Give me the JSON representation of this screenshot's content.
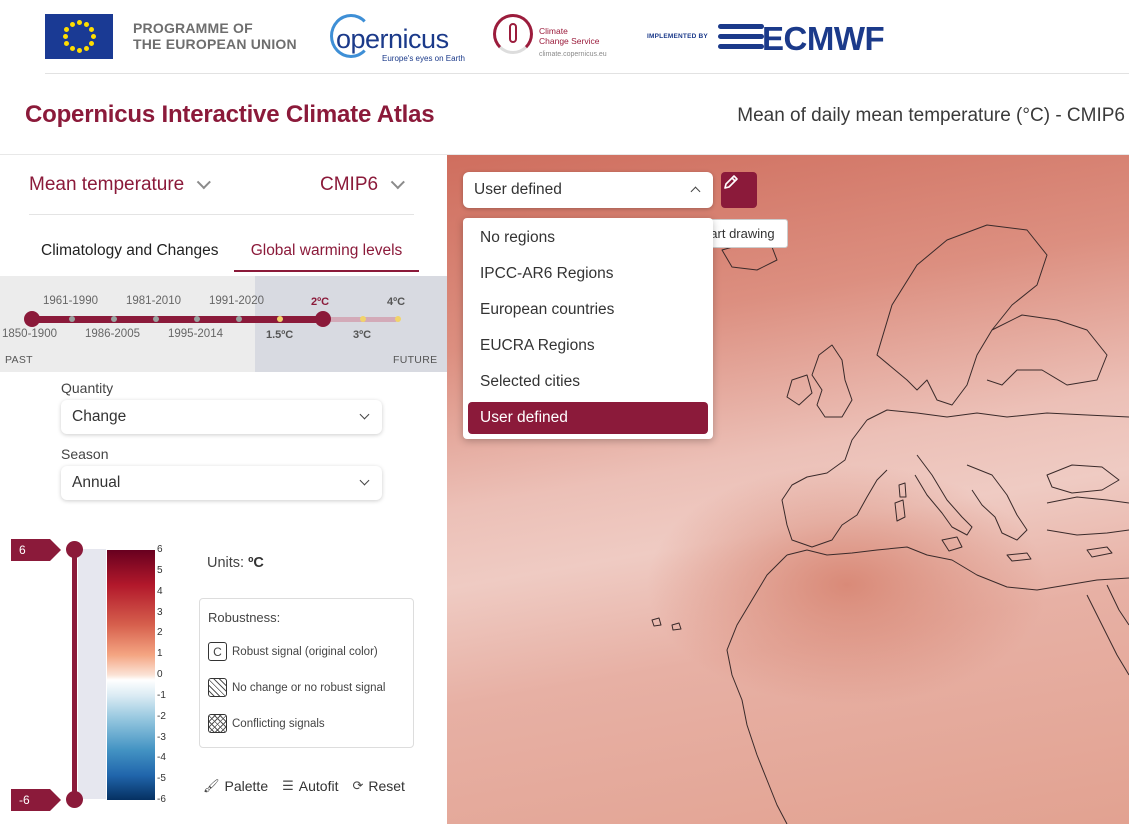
{
  "header": {
    "eu_text_line1": "PROGRAMME OF",
    "eu_text_line2": "THE EUROPEAN UNION",
    "copernicus_word": "opernicus",
    "copernicus_tagline": "Europe's eyes on Earth",
    "c3s_line1": "Climate",
    "c3s_line2": "Change Service",
    "c3s_url": "climate.copernicus.eu",
    "implemented_by": "IMPLEMENTED BY",
    "ecmwf_word": "ECMWF"
  },
  "title": {
    "app": "Copernicus Interactive Climate Atlas",
    "map": "Mean of daily mean temperature (°C) - CMIP6"
  },
  "panel": {
    "variable": "Mean temperature",
    "dataset": "CMIP6",
    "tabs": [
      "Climatology and Changes",
      "Global warming levels"
    ],
    "active_tab": 1,
    "timeline": {
      "periods_top": [
        "1961-1990",
        "1981-2010",
        "1991-2020"
      ],
      "periods_bottom": [
        "1850-1900",
        "1986-2005",
        "1995-2014"
      ],
      "gwl_top": [
        "2ºC",
        "4ºC"
      ],
      "gwl_bottom": [
        "1.5ºC",
        "3ºC"
      ],
      "selected": "2ºC",
      "past_label": "PAST",
      "future_label": "FUTURE"
    },
    "quantity_label": "Quantity",
    "quantity_value": "Change",
    "season_label": "Season",
    "season_value": "Annual"
  },
  "legend": {
    "max_flag": "6",
    "min_flag": "-6",
    "ticks": [
      "6",
      "5",
      "4",
      "3",
      "2",
      "1",
      "0",
      "-1",
      "-2",
      "-3",
      "-4",
      "-5",
      "-6"
    ],
    "units_label": "Units:",
    "units_value": "ºC",
    "robustness_title": "Robustness:",
    "robust_icon_letter": "C",
    "robust_items": [
      "Robust signal (original color)",
      "No change or no robust signal",
      "Conflicting signals"
    ],
    "actions": [
      "Palette",
      "Autofit",
      "Reset"
    ]
  },
  "map": {
    "region_select_value": "User defined",
    "draw_tooltip": "Start drawing",
    "region_options": [
      "No regions",
      "IPCC-AR6 Regions",
      "European countries",
      "EUCRA Regions",
      "Selected cities",
      "User defined"
    ],
    "selected_region": "User defined"
  },
  "colors": {
    "brand": "#8b1a3a",
    "ecmwf_blue": "#1b3a8a"
  }
}
